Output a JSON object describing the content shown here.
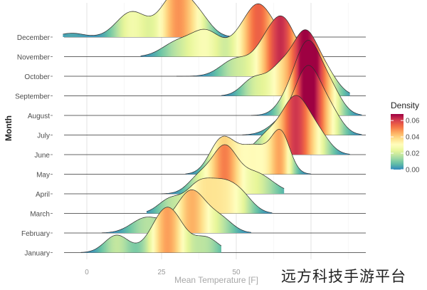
{
  "chart_data": {
    "type": "ridgeline",
    "xlabel": "Mean Temperature [F]",
    "ylabel": "Month",
    "x_ticks": [
      0,
      25,
      50
    ],
    "xlim": [
      -8,
      98
    ],
    "grid": true,
    "legend": {
      "title": "Density",
      "position": "right",
      "ticks": [
        "0.00",
        "0.02",
        "0.04",
        "0.06"
      ],
      "tick_values": [
        0,
        0.02,
        0.04,
        0.06
      ],
      "range": [
        0,
        0.068
      ],
      "colors": [
        "#3288bd",
        "#66c2a5",
        "#abdda4",
        "#e6f598",
        "#ffffbf",
        "#fee08b",
        "#fdae61",
        "#f46d43",
        "#d53e4f",
        "#9e0142"
      ]
    },
    "categories": [
      "January",
      "February",
      "March",
      "April",
      "May",
      "June",
      "July",
      "August",
      "September",
      "October",
      "November",
      "December"
    ],
    "series": [
      {
        "name": "January",
        "range": [
          -2,
          45
        ],
        "peaks": [
          [
            10,
            0.018,
            4
          ],
          [
            27,
            0.047,
            5
          ],
          [
            40,
            0.015,
            4
          ]
        ]
      },
      {
        "name": "February",
        "range": [
          5,
          55
        ],
        "peaks": [
          [
            20,
            0.016,
            5
          ],
          [
            35,
            0.044,
            5
          ],
          [
            45,
            0.013,
            4
          ]
        ]
      },
      {
        "name": "March",
        "range": [
          20,
          62
        ],
        "peaks": [
          [
            28,
            0.015,
            4
          ],
          [
            37,
            0.024,
            4
          ],
          [
            45,
            0.03,
            5
          ],
          [
            52,
            0.013,
            4
          ]
        ]
      },
      {
        "name": "April",
        "range": [
          25,
          66
        ],
        "peaks": [
          [
            38,
            0.018,
            4
          ],
          [
            46,
            0.043,
            4
          ],
          [
            56,
            0.022,
            6
          ]
        ]
      },
      {
        "name": "May",
        "range": [
          33,
          75
        ],
        "peaks": [
          [
            45,
            0.033,
            4
          ],
          [
            56,
            0.03,
            6
          ],
          [
            65,
            0.036,
            3
          ]
        ]
      },
      {
        "name": "June",
        "range": [
          48,
          88
        ],
        "peaks": [
          [
            62,
            0.024,
            5
          ],
          [
            70,
            0.05,
            4
          ],
          [
            77,
            0.022,
            4
          ]
        ]
      },
      {
        "name": "July",
        "range": [
          52,
          92
        ],
        "peaks": [
          [
            67,
            0.018,
            5
          ],
          [
            74,
            0.06,
            4
          ],
          [
            81,
            0.025,
            4
          ]
        ]
      },
      {
        "name": "August",
        "range": [
          55,
          92
        ],
        "peaks": [
          [
            68,
            0.018,
            4
          ],
          [
            74,
            0.066,
            4
          ],
          [
            81,
            0.028,
            4
          ]
        ]
      },
      {
        "name": "September",
        "range": [
          45,
          88
        ],
        "peaks": [
          [
            56,
            0.018,
            4
          ],
          [
            65,
            0.028,
            4
          ],
          [
            73,
            0.06,
            4
          ],
          [
            80,
            0.022,
            4
          ]
        ]
      },
      {
        "name": "October",
        "range": [
          30,
          82
        ],
        "peaks": [
          [
            50,
            0.018,
            5
          ],
          [
            60,
            0.028,
            4
          ],
          [
            66,
            0.05,
            4
          ],
          [
            74,
            0.014,
            4
          ]
        ]
      },
      {
        "name": "November",
        "range": [
          18,
          72
        ],
        "peaks": [
          [
            30,
            0.014,
            5
          ],
          [
            40,
            0.026,
            5
          ],
          [
            52,
            0.02,
            4
          ],
          [
            58,
            0.046,
            4
          ],
          [
            64,
            0.014,
            3
          ]
        ]
      },
      {
        "name": "December",
        "range": [
          -8,
          55
        ],
        "peaks": [
          [
            -5,
            0.004,
            4
          ],
          [
            15,
            0.026,
            5
          ],
          [
            30,
            0.046,
            5
          ],
          [
            38,
            0.015,
            4
          ]
        ]
      }
    ]
  },
  "watermark": "远方科技手游平台"
}
